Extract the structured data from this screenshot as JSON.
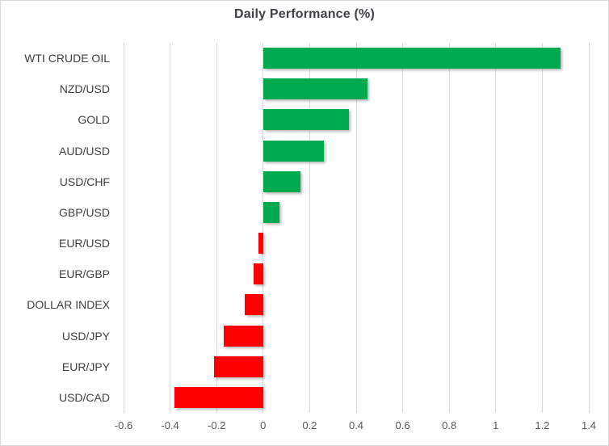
{
  "chart_data": {
    "type": "bar",
    "orientation": "horizontal",
    "title": "Daily Performance (%)",
    "categories": [
      "WTI CRUDE OIL",
      "NZD/USD",
      "GOLD",
      "AUD/USD",
      "USD/CHF",
      "GBP/USD",
      "EUR/USD",
      "EUR/GBP",
      "DOLLAR INDEX",
      "USD/JPY",
      "EUR/JPY",
      "USD/CAD"
    ],
    "values": [
      1.28,
      0.45,
      0.37,
      0.26,
      0.16,
      0.07,
      -0.02,
      -0.04,
      -0.08,
      -0.17,
      -0.21,
      -0.38
    ],
    "xlim": [
      -0.6,
      1.4
    ],
    "xticks": [
      -0.6,
      -0.4,
      -0.2,
      0,
      0.2,
      0.4,
      0.6,
      0.8,
      1,
      1.2,
      1.4
    ],
    "xtick_labels": [
      "-0.6",
      "-0.4",
      "-0.2",
      "0",
      "0.2",
      "0.4",
      "0.6",
      "0.8",
      "1",
      "1.2",
      "1.4"
    ],
    "grid": "vertical-on",
    "legend": "none",
    "positive_color": "#00ab50",
    "negative_color": "#ff0000",
    "gridline_color": "#d9d9d9",
    "title_color": "#404047",
    "category_label_color": "#404040",
    "tick_label_color": "#595959",
    "frame_color": "#d9d9d9"
  }
}
